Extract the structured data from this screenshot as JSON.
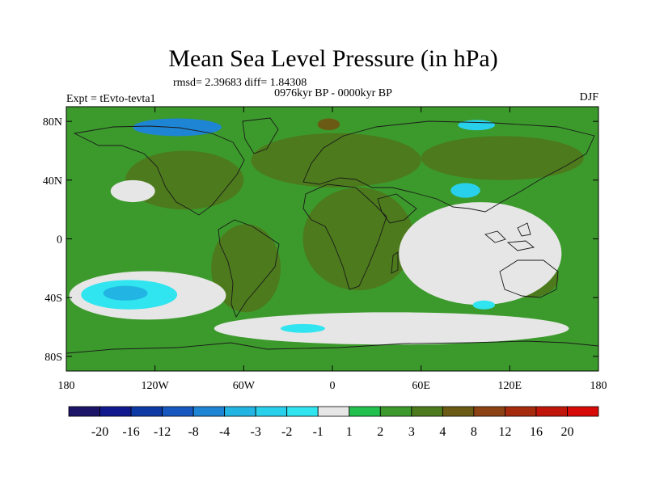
{
  "chart_data": {
    "type": "heatmap",
    "title": "Mean Sea Level Pressure (in hPa)",
    "stats_line": "rmsd= 2.39683  diff= 1.84308",
    "period": "0976kyr BP - 0000kyr BP",
    "experiment": "Expt = tEvto-tevta1",
    "season": "DJF",
    "x_ticks": [
      "180",
      "120W",
      "60W",
      "0",
      "60E",
      "120E",
      "180"
    ],
    "x_tick_values": [
      -180,
      -120,
      -60,
      0,
      60,
      120,
      180
    ],
    "y_ticks": [
      "80N",
      "40N",
      "0",
      "40S",
      "80S"
    ],
    "y_tick_values": [
      80,
      40,
      0,
      -40,
      -80
    ],
    "xlim": [
      -180,
      180
    ],
    "ylim": [
      -90,
      90
    ],
    "colorbar_labels": [
      "-20",
      "-16",
      "-12",
      "-8",
      "-4",
      "-3",
      "-2",
      "-1",
      "1",
      "2",
      "3",
      "4",
      "8",
      "12",
      "16",
      "20"
    ],
    "colorbar_colors": [
      "#1c1468",
      "#12188e",
      "#0e3aa6",
      "#1658c0",
      "#1e84d4",
      "#22b4e2",
      "#28d0ec",
      "#30e4f0",
      "#e6e6e6",
      "#22c04c",
      "#3c9a2c",
      "#4c7a1c",
      "#6a5a14",
      "#8c4212",
      "#a62a0c",
      "#c0160a",
      "#d80a08"
    ],
    "background_level": "2 to 3",
    "regions": [
      {
        "name": "north-america-east",
        "level": "3 to 4",
        "lon": [
          -140,
          -60
        ],
        "lat": [
          20,
          60
        ]
      },
      {
        "name": "north-atlantic-europe",
        "level": "3 to 4",
        "lon": [
          -55,
          60
        ],
        "lat": [
          35,
          72
        ]
      },
      {
        "name": "eurasia-north",
        "level": "3 to 4",
        "lon": [
          60,
          170
        ],
        "lat": [
          40,
          70
        ]
      },
      {
        "name": "arctic-north-atlantic",
        "level": "4 to 8",
        "lon": [
          -10,
          5
        ],
        "lat": [
          74,
          82
        ]
      },
      {
        "name": "africa-arabia",
        "level": "3 to 4",
        "lon": [
          -20,
          55
        ],
        "lat": [
          -35,
          35
        ]
      },
      {
        "name": "south-america",
        "level": "3 to 4",
        "lon": [
          -82,
          -35
        ],
        "lat": [
          -50,
          10
        ]
      },
      {
        "name": "australia",
        "level": "3 to 4",
        "lon": [
          113,
          153
        ],
        "lat": [
          -40,
          -12
        ]
      },
      {
        "name": "north-pacific-low-anomaly",
        "level": "-1 to 1",
        "lon": [
          -150,
          -120
        ],
        "lat": [
          25,
          40
        ]
      },
      {
        "name": "south-pacific-anomaly",
        "level": "-1 to 1",
        "lon": [
          -178,
          -72
        ],
        "lat": [
          -55,
          -22
        ]
      },
      {
        "name": "south-pacific-core",
        "level": "-3 to -1",
        "lon": [
          -170,
          -105
        ],
        "lat": [
          -48,
          -28
        ]
      },
      {
        "name": "south-pacific-center",
        "level": "-4 to -3",
        "lon": [
          -155,
          -125
        ],
        "lat": [
          -42,
          -32
        ]
      },
      {
        "name": "indian-ocean-anomaly",
        "level": "-1 to 1",
        "lon": [
          45,
          155
        ],
        "lat": [
          -45,
          25
        ]
      },
      {
        "name": "southern-ocean-band",
        "level": "-1 to 1",
        "lon": [
          -80,
          160
        ],
        "lat": [
          -72,
          -50
        ]
      },
      {
        "name": "south-atlantic-spot",
        "level": "-2 to -1",
        "lon": [
          -35,
          -5
        ],
        "lat": [
          -64,
          -58
        ]
      },
      {
        "name": "indian-ocean-spot",
        "level": "-2 to -1",
        "lon": [
          95,
          110
        ],
        "lat": [
          -48,
          -42
        ]
      },
      {
        "name": "tibet-low",
        "level": "-8 to -2",
        "lon": [
          80,
          100
        ],
        "lat": [
          28,
          38
        ]
      },
      {
        "name": "arctic-canada-low",
        "level": "-20 to -4",
        "lon": [
          -135,
          -75
        ],
        "lat": [
          70,
          82
        ]
      },
      {
        "name": "siberia-arctic-low",
        "level": "-8 to -2",
        "lon": [
          85,
          110
        ],
        "lat": [
          74,
          81
        ]
      }
    ]
  }
}
